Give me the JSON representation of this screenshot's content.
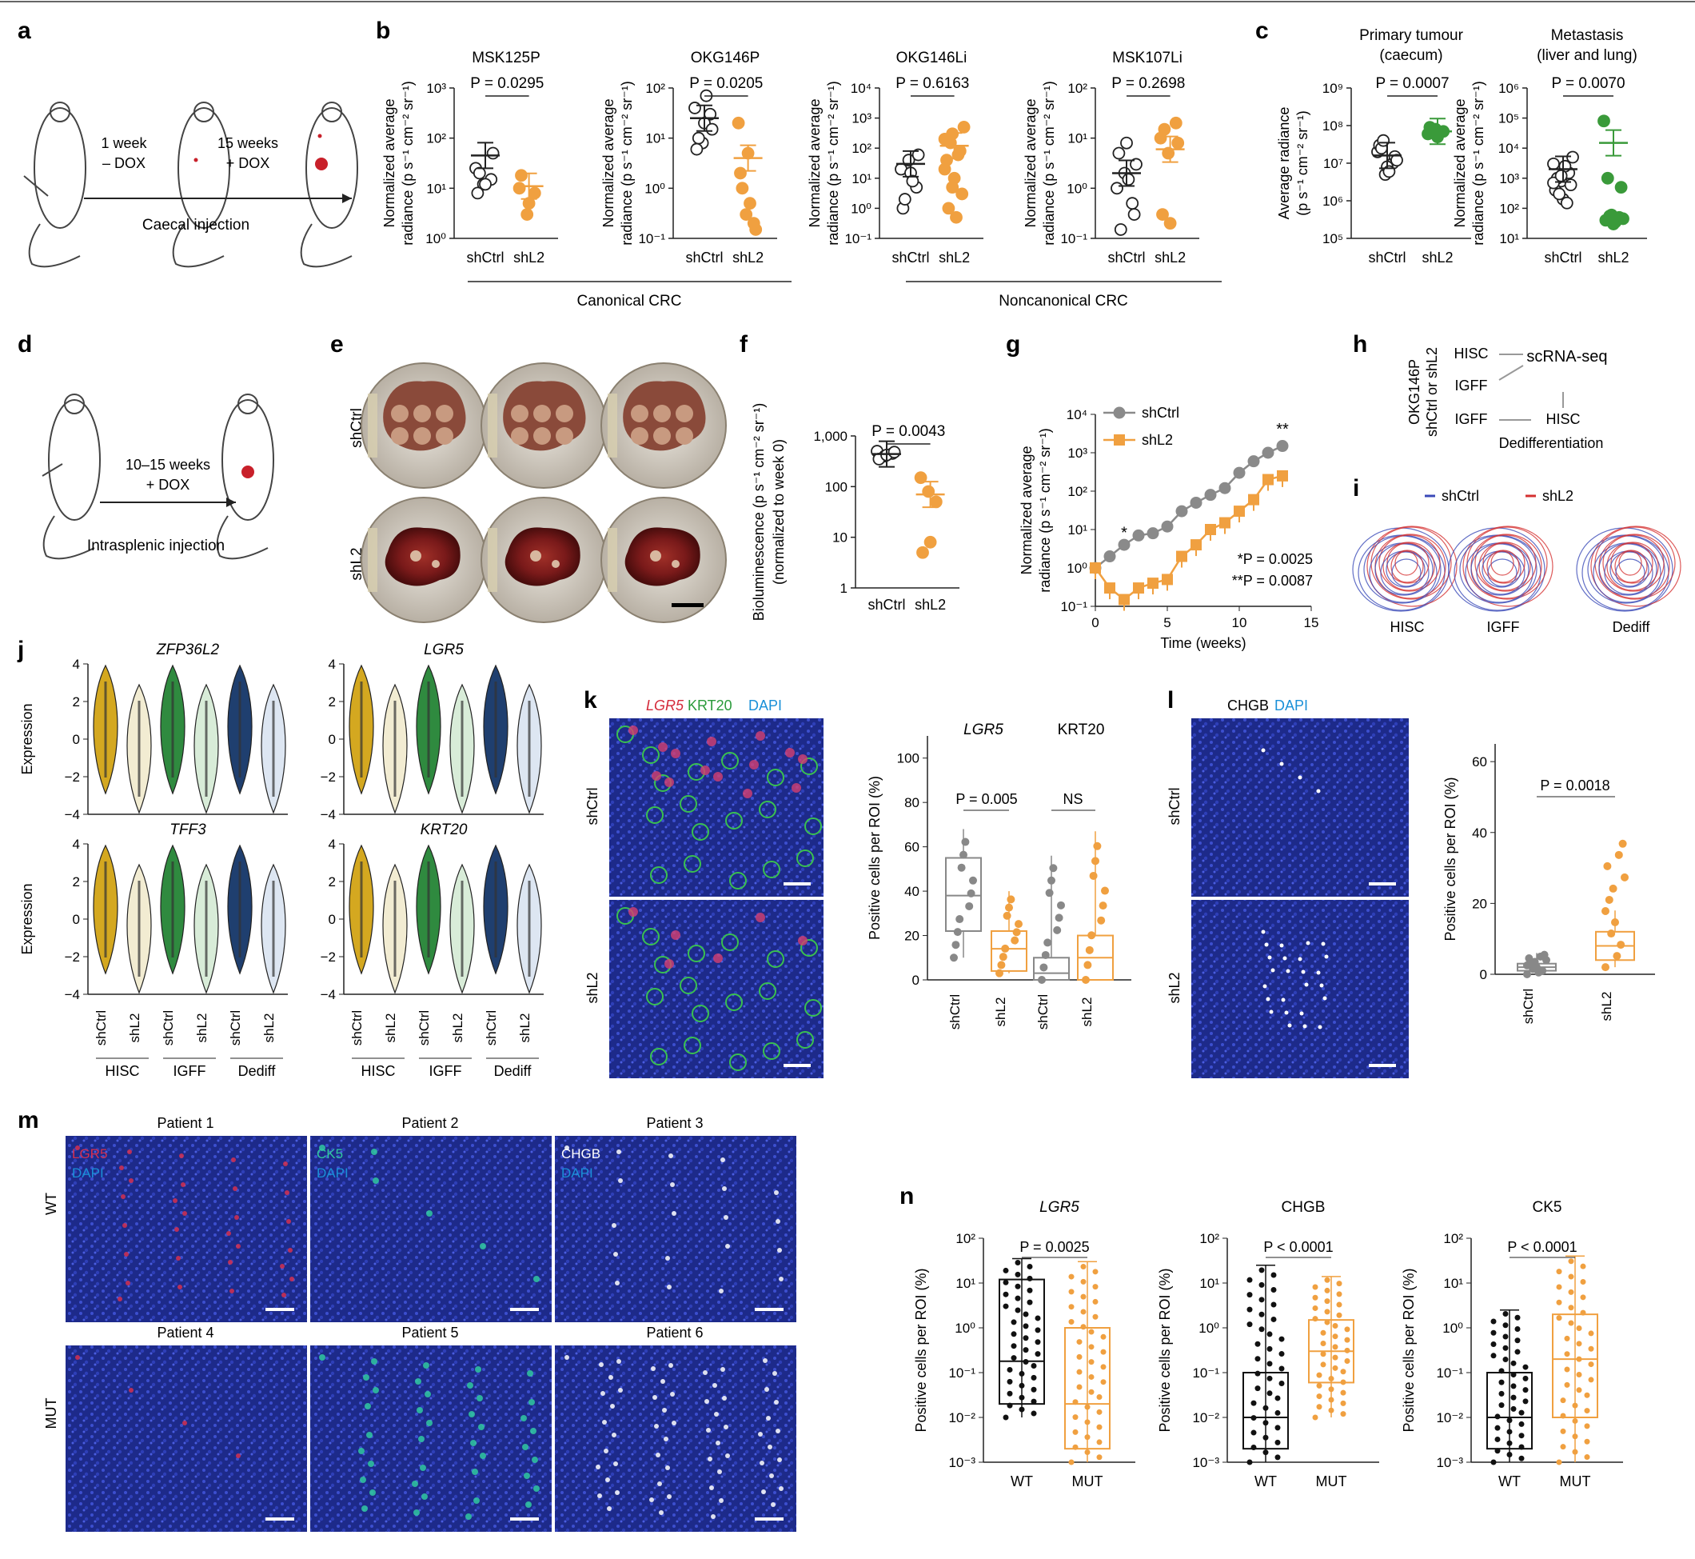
{
  "colors": {
    "ctrl": "#1a1a1a",
    "kd": "#f0a040",
    "green": "#3a9a3a",
    "hisc": "#d4a820",
    "igff": "#2f8a3f",
    "dediff": "#1f3f6f",
    "liver": "#7a1a1a",
    "fluor_bg": "#1a1f7a"
  },
  "panel_letters": [
    "a",
    "b",
    "c",
    "d",
    "e",
    "f",
    "g",
    "h",
    "i",
    "j",
    "k",
    "l",
    "m",
    "n"
  ],
  "a": {
    "step1": "1 week",
    "step1b": "– DOX",
    "step2": "15 weeks",
    "step2b": "+ DOX",
    "caption": "Caecal injection"
  },
  "b": {
    "ylabel1": "Normalized average",
    "ylabel2": "radiance (p s⁻¹ cm⁻² sr⁻¹)",
    "group_canonical": "Canonical CRC",
    "group_noncanonical": "Noncanonical CRC",
    "plots": [
      {
        "title": "MSK125P",
        "p": "P = 0.0295",
        "ticks": [
          "10⁰",
          "10¹",
          "10²",
          "10³"
        ],
        "decades": [
          0,
          3
        ],
        "ctrl": [
          25,
          12,
          15,
          8,
          12,
          50,
          20
        ],
        "kd": [
          10,
          3,
          8,
          18,
          5
        ],
        "ctrl_mean": 45,
        "kd_mean": 11
      },
      {
        "title": "OKG146P",
        "p": "P = 0.0205",
        "ticks": [
          "10⁻¹",
          "10⁰",
          "10¹",
          "10²"
        ],
        "decades": [
          -1,
          2
        ],
        "ctrl": [
          40,
          8,
          30,
          6,
          20,
          15,
          10,
          70
        ],
        "kd": [
          20,
          0.3,
          0.2,
          2,
          5,
          0.15,
          1,
          0.5
        ],
        "ctrl_mean": 25,
        "kd_mean": 4
      },
      {
        "title": "OKG146Li",
        "p": "P = 0.6163",
        "ticks": [
          "10⁻¹",
          "10⁰",
          "10¹",
          "10²",
          "10³",
          "10⁴"
        ],
        "decades": [
          -1,
          4
        ],
        "ctrl": [
          20,
          40,
          5,
          1,
          15,
          60,
          2,
          8
        ],
        "kd": [
          200,
          300,
          80,
          40,
          10,
          3,
          1,
          0.5,
          500,
          150,
          60,
          20,
          5
        ],
        "ctrl_mean": 30,
        "kd_mean": 120
      },
      {
        "title": "MSK107Li",
        "p": "P = 0.2698",
        "ticks": [
          "10⁻¹",
          "10⁰",
          "10¹",
          "10²"
        ],
        "decades": [
          -1,
          2
        ],
        "ctrl": [
          1,
          2,
          0.5,
          5,
          8,
          0.3,
          0.15,
          1.5,
          3
        ],
        "kd": [
          10,
          5,
          20,
          0.3,
          0.2,
          8,
          15
        ],
        "ctrl_mean": 2,
        "kd_mean": 6
      }
    ]
  },
  "c": {
    "plots": [
      {
        "title1": "Primary tumour",
        "title2": "(caecum)",
        "p": "P = 0.0007",
        "ylabel1": "Average radiance",
        "ylabel2": "(p s⁻¹ cm⁻² sr⁻¹)",
        "ticks": [
          "10⁵",
          "10⁶",
          "10⁷",
          "10⁸",
          "10⁹"
        ],
        "decades": [
          5,
          9
        ],
        "ctrl": [
          20000000.0,
          5000000.0,
          10000000.0,
          30000000.0,
          8000000.0,
          15000000.0,
          25000000.0,
          6000000.0,
          12000000.0,
          40000000.0
        ],
        "kd": [
          60000000.0,
          80000000.0,
          70000000.0,
          90000000.0,
          50000000.0
        ],
        "ctrl_mean": 16000000.0,
        "kd_mean": 70000000.0
      },
      {
        "title1": "Metastasis",
        "title2": "(liver and lung)",
        "p": "P = 0.0070",
        "ylabel1": "Normalized average",
        "ylabel2": "radiance (p s⁻¹ cm⁻² sr⁻¹)",
        "ticks": [
          "10¹",
          "10²",
          "10³",
          "10⁴",
          "10⁵",
          "10⁶"
        ],
        "decades": [
          1,
          6
        ],
        "ctrl": [
          3000,
          800,
          1500,
          400,
          200,
          600,
          1000,
          2500,
          5000,
          300,
          150,
          700,
          1200
        ],
        "kd": [
          80000,
          60,
          50,
          40,
          30,
          500,
          1000,
          35,
          45,
          55
        ],
        "ctrl_mean": 2000,
        "kd_mean": 15000
      }
    ],
    "xlabels": [
      "shCtrl",
      "shL2"
    ]
  },
  "d": {
    "step": "10–15 weeks",
    "stepb": "+ DOX",
    "caption": "Intrasplenic injection"
  },
  "e": {
    "row1": "shCtrl",
    "row2": "shL2"
  },
  "f": {
    "p": "P = 0.0043",
    "ylabel1": "Bioluminescence (p s⁻¹ cm⁻² sr⁻¹)",
    "ylabel2": "(normalized to week 0)",
    "ticks": [
      "1",
      "10",
      "100",
      "1,000"
    ],
    "decades": [
      0,
      3
    ],
    "ctrl": [
      500,
      400,
      450,
      350,
      420,
      480
    ],
    "kd": [
      150,
      80,
      50,
      5,
      8
    ],
    "ctrl_mean": 440,
    "kd_mean": 70
  },
  "g": {
    "ylabel1": "Normalized average",
    "ylabel2": "radiance (p s⁻¹ cm⁻² sr⁻¹)",
    "xlabel": "Time (weeks)",
    "xticks": [
      "0",
      "5",
      "10",
      "15"
    ],
    "yticks": [
      "10⁻¹",
      "10⁰",
      "10¹",
      "10²",
      "10³",
      "10⁴"
    ],
    "legend": [
      "shCtrl",
      "shL2"
    ],
    "note1": "*P = 0.0025",
    "note2": "**P = 0.0087",
    "star1": "*",
    "star2": "**",
    "weeks": [
      0,
      1,
      2,
      3,
      4,
      5,
      6,
      7,
      8,
      9,
      10,
      11,
      12,
      13
    ],
    "ctrl": [
      1,
      2,
      4,
      7,
      8,
      12,
      30,
      50,
      80,
      120,
      300,
      600,
      1000,
      1500
    ],
    "kd": [
      1,
      0.3,
      0.15,
      0.3,
      0.4,
      0.5,
      2,
      4,
      10,
      15,
      30,
      60,
      200,
      250
    ]
  },
  "h": {
    "side": "OKG146P",
    "side2": "shCtrl or shL2",
    "hisc": "HISC",
    "igff": "IGFF",
    "scrna": "scRNA-seq",
    "igff2": "IGFF",
    "hisc2": "HISC",
    "dediff": "Dedifferentiation"
  },
  "i": {
    "legend": [
      "shCtrl",
      "shL2"
    ],
    "labels": [
      "HISC",
      "IGFF",
      "Dediff"
    ]
  },
  "j": {
    "ylabel": "Expression",
    "genes": [
      "ZFP36L2",
      "LGR5",
      "TFF3",
      "KRT20"
    ],
    "yticks": [
      "−4",
      "−2",
      "0",
      "2",
      "4"
    ],
    "xlabels": [
      "shCtrl",
      "shL2",
      "shCtrl",
      "shL2",
      "shCtrl",
      "shL2"
    ],
    "groups": [
      "HISC",
      "IGFF",
      "Dediff"
    ]
  },
  "k": {
    "stain1": "LGR5",
    "stain2": "KRT20",
    "stain3": "DAPI",
    "rows": [
      "shCtrl",
      "shL2"
    ],
    "ylabel": "Positive cells per ROI (%)",
    "yticks": [
      "0",
      "20",
      "40",
      "60",
      "80",
      "100"
    ],
    "head1": "LGR5",
    "head2": "KRT20",
    "p1": "P = 0.005",
    "p2": "NS",
    "xlabels": [
      "shCtrl",
      "shL2",
      "shCtrl",
      "shL2"
    ]
  },
  "l": {
    "stain1": "CHGB",
    "stain2": "DAPI",
    "rows": [
      "shCtrl",
      "shL2"
    ],
    "ylabel": "Positive cells per ROI (%)",
    "yticks": [
      "0",
      "20",
      "40",
      "60"
    ],
    "p": "P = 0.0018",
    "xlabels": [
      "shCtrl",
      "shL2"
    ]
  },
  "m": {
    "titles": [
      "Patient 1",
      "Patient 2",
      "Patient 3",
      "Patient 4",
      "Patient 5",
      "Patient 6"
    ],
    "rows": [
      "WT",
      "MUT"
    ],
    "stains": [
      [
        "LGR5",
        "DAPI"
      ],
      [
        "CK5",
        "DAPI"
      ],
      [
        "CHGB",
        "DAPI"
      ]
    ]
  },
  "n": {
    "ylabel": "Positive cells per ROI (%)",
    "yticks": [
      "10⁻³",
      "10⁻²",
      "10⁻¹",
      "10⁰",
      "10¹",
      "10²"
    ],
    "xlabels": [
      "WT",
      "MUT"
    ],
    "plots": [
      {
        "title": "LGR5",
        "p": "P = 0.0025"
      },
      {
        "title": "CHGB",
        "p": "P < 0.0001"
      },
      {
        "title": "CK5",
        "p": "P < 0.0001"
      }
    ]
  }
}
